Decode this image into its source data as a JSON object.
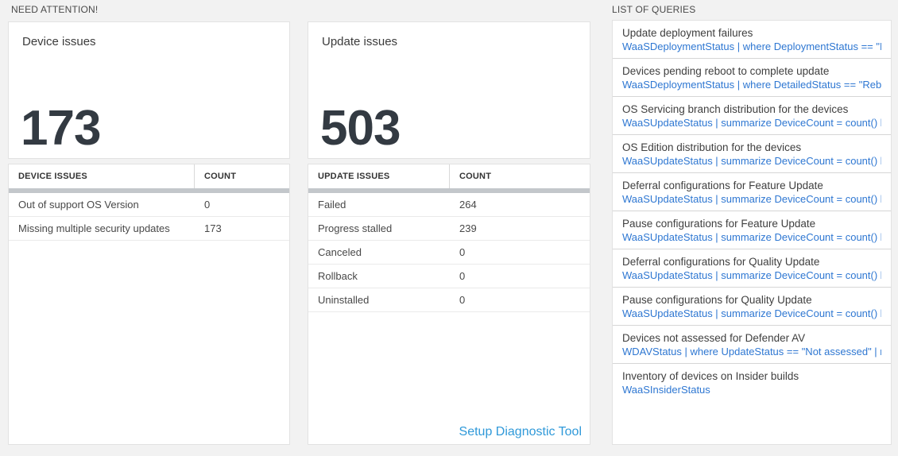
{
  "need_attention": {
    "label": "NEED ATTENTION!",
    "device_card": {
      "title": "Device issues",
      "count": "173",
      "table": {
        "headers": [
          "DEVICE ISSUES",
          "COUNT"
        ],
        "rows": [
          {
            "name": "Out of support OS Version",
            "count": "0"
          },
          {
            "name": "Missing multiple security updates",
            "count": "173"
          }
        ]
      }
    },
    "update_card": {
      "title": "Update issues",
      "count": "503",
      "table": {
        "headers": [
          "UPDATE ISSUES",
          "COUNT"
        ],
        "rows": [
          {
            "name": "Failed",
            "count": "264"
          },
          {
            "name": "Progress stalled",
            "count": "239"
          },
          {
            "name": "Canceled",
            "count": "0"
          },
          {
            "name": "Rollback",
            "count": "0"
          },
          {
            "name": "Uninstalled",
            "count": "0"
          }
        ]
      },
      "link": "Setup Diagnostic Tool"
    }
  },
  "queries": {
    "label": "LIST OF QUERIES",
    "items": [
      {
        "title": "Update deployment failures",
        "query": "WaaSDeploymentStatus | where DeploymentStatus == \"Failed\" |..."
      },
      {
        "title": "Devices pending reboot to complete update",
        "query": "WaaSDeploymentStatus | where DetailedStatus == \"Reboot pend..."
      },
      {
        "title": "OS Servicing branch distribution for the devices",
        "query": "WaaSUpdateStatus | summarize DeviceCount = count() by OSSer..."
      },
      {
        "title": "OS Edition distribution for the devices",
        "query": "WaaSUpdateStatus | summarize DeviceCount = count() by OSEdit..."
      },
      {
        "title": "Deferral configurations for Feature Update",
        "query": "WaaSUpdateStatus | summarize DeviceCount = count() by Featur..."
      },
      {
        "title": "Pause configurations for Feature Update",
        "query": "WaaSUpdateStatus | summarize DeviceCount = count() by Featur..."
      },
      {
        "title": "Deferral configurations for Quality Update",
        "query": "WaaSUpdateStatus | summarize DeviceCount = count() by Qualit..."
      },
      {
        "title": "Pause configurations for Quality Update",
        "query": "WaaSUpdateStatus | summarize DeviceCount = count() by Qualit..."
      },
      {
        "title": "Devices not assessed for Defender AV",
        "query": "WDAVStatus | where UpdateStatus == \"Not assessed\" | render ta..."
      },
      {
        "title": "Inventory of devices on Insider builds",
        "query": "WaaSInsiderStatus"
      }
    ]
  },
  "colors": {
    "page_background": "#f2f2f2",
    "query_blue": "#2e77d2",
    "link_blue": "#2f99d9",
    "number_dark": "#333a42",
    "header_bar_gray": "#c3c7cb"
  }
}
